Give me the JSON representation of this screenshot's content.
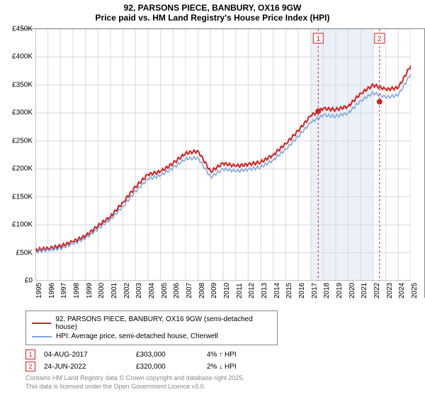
{
  "title": "92, PARSONS PIECE, BANBURY, OX16 9GW",
  "subtitle": "Price paid vs. HM Land Registry's House Price Index (HPI)",
  "chart": {
    "type": "line",
    "ylim": [
      0,
      450
    ],
    "ytick_step": 50,
    "ytick_labels": [
      "£0",
      "£50K",
      "£100K",
      "£150K",
      "£200K",
      "£250K",
      "£300K",
      "£350K",
      "£400K",
      "£450K"
    ],
    "x_years": [
      1995,
      1996,
      1997,
      1998,
      1999,
      2000,
      2001,
      2002,
      2003,
      2004,
      2005,
      2006,
      2007,
      2008,
      2009,
      2010,
      2011,
      2012,
      2013,
      2014,
      2015,
      2016,
      2017,
      2018,
      2019,
      2020,
      2021,
      2022,
      2023,
      2024,
      2025
    ],
    "grid_color": "#d9d9d9",
    "background_color": "#ffffff",
    "highlight_band": {
      "enabled": true,
      "x_from": 2017,
      "x_to": 2022,
      "color": "#eaf1f8"
    },
    "series": [
      {
        "name": "price_paid",
        "label": "92, PARSONS PIECE, BANBURY, OX16 9GW (semi-detached house)",
        "color": "#d42020",
        "line_width": 2,
        "years": [
          1995,
          1996,
          1997,
          1998,
          1999,
          2000,
          2001,
          2002,
          2003,
          2004,
          2005,
          2006,
          2007,
          2008,
          2009,
          2010,
          2011,
          2012,
          2013,
          2014,
          2015,
          2016,
          2017,
          2018,
          2019,
          2020,
          2021,
          2022,
          2023,
          2024,
          2025
        ],
        "values": [
          55,
          58,
          62,
          70,
          80,
          98,
          115,
          140,
          168,
          190,
          195,
          210,
          228,
          232,
          195,
          210,
          205,
          208,
          212,
          225,
          245,
          268,
          295,
          308,
          306,
          312,
          335,
          350,
          342,
          345,
          385
        ]
      },
      {
        "name": "hpi",
        "label": "HPI: Average price, semi-detached house, Cherwell",
        "color": "#7da5d8",
        "line_width": 1.5,
        "years": [
          1995,
          1996,
          1997,
          1998,
          1999,
          2000,
          2001,
          2002,
          2003,
          2004,
          2005,
          2006,
          2007,
          2008,
          2009,
          2010,
          2011,
          2012,
          2013,
          2014,
          2015,
          2016,
          2017,
          2018,
          2019,
          2020,
          2021,
          2022,
          2023,
          2024,
          2025
        ],
        "values": [
          52,
          55,
          58,
          66,
          76,
          93,
          110,
          133,
          160,
          182,
          188,
          202,
          218,
          220,
          185,
          200,
          196,
          199,
          203,
          216,
          235,
          258,
          283,
          296,
          294,
          300,
          322,
          336,
          328,
          332,
          370
        ]
      }
    ],
    "markers": [
      {
        "label": "1",
        "year": 2017.6,
        "value": 303,
        "color": "#d42020",
        "line_dash": "3,3"
      },
      {
        "label": "2",
        "year": 2022.5,
        "value": 320,
        "color": "#d42020",
        "line_dash": "3,3"
      }
    ]
  },
  "legend": {
    "items": [
      {
        "label": "92, PARSONS PIECE, BANBURY, OX16 9GW (semi-detached house)",
        "color": "#d42020"
      },
      {
        "label": "HPI: Average price, semi-detached house, Cherwell",
        "color": "#7da5d8"
      }
    ]
  },
  "sales": [
    {
      "label": "1",
      "date": "04-AUG-2017",
      "price": "£303,000",
      "note": "4% ↑ HPI",
      "color": "#d42020"
    },
    {
      "label": "2",
      "date": "24-JUN-2022",
      "price": "£320,000",
      "note": "2% ↓ HPI",
      "color": "#d42020"
    }
  ],
  "footer": {
    "line1": "Contains HM Land Registry data © Crown copyright and database right 2025.",
    "line2": "This data is licensed under the Open Government Licence v3.0."
  }
}
